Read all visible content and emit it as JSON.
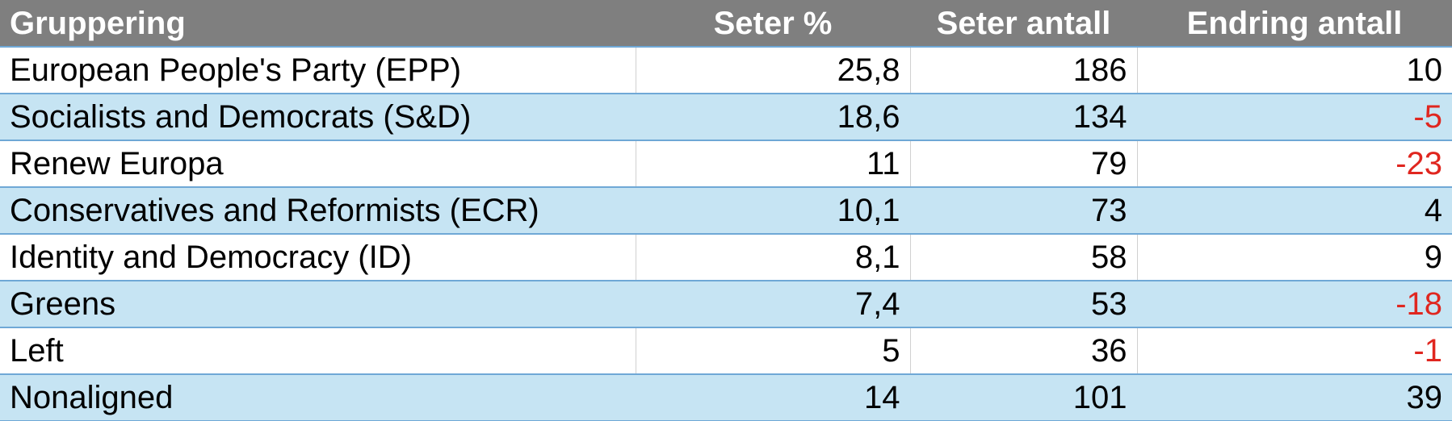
{
  "table": {
    "header": [
      "Gruppering",
      "Seter %",
      "Seter antall",
      "Endring antall"
    ],
    "rows": [
      [
        "European People's Party (EPP)",
        "25,8",
        "186",
        "10"
      ],
      [
        "Socialists and Democrats (S&D)",
        "18,6",
        "134",
        "-5"
      ],
      [
        "Renew Europa",
        "11",
        "79",
        "-23"
      ],
      [
        "Conservatives and Reformists (ECR)",
        "10,1",
        "73",
        "4"
      ],
      [
        "Identity and Democracy (ID)",
        "8,1",
        "58",
        "9"
      ],
      [
        "Greens",
        "7,4",
        "53",
        "-18"
      ],
      [
        "Left",
        "5",
        "36",
        "-1"
      ],
      [
        "Nonaligned",
        "14",
        "101",
        "39"
      ]
    ]
  }
}
